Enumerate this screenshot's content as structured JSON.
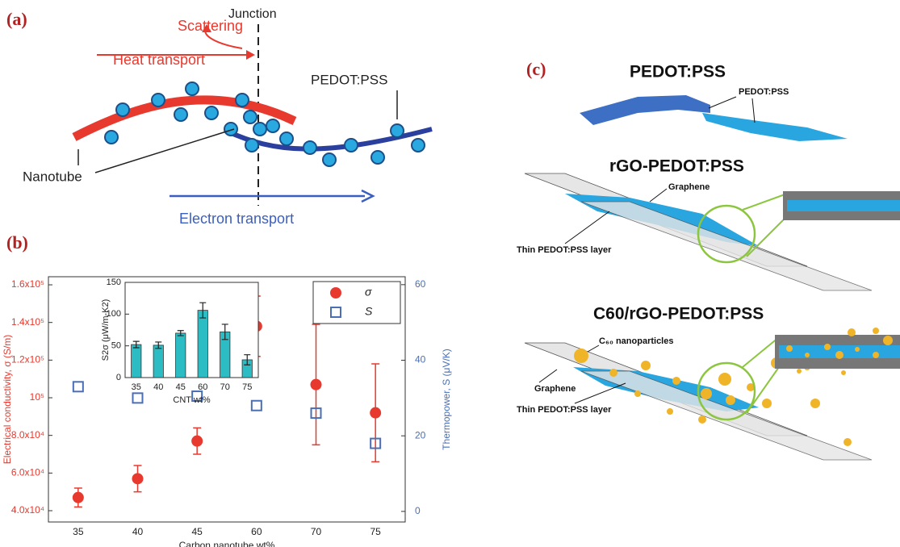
{
  "panel_a": {
    "label": "(a)",
    "scattering": "Scattering",
    "junction": "Junction",
    "heat_transport": "Heat transport",
    "pedot_pss": "PEDOT:PSS",
    "nanotube": "Nanotube",
    "electron_transport": "Electron transport"
  },
  "panel_b": {
    "label": "(b)"
  },
  "chart_data": [
    {
      "type": "scatter",
      "xlabel": "Carbon nanotube wt%",
      "ylabel": "Electrical conductivity, σ (S/m)",
      "y2label": "Thermopower, S (μV/K)",
      "categories": [
        "35",
        "40",
        "45",
        "60",
        "70",
        "75"
      ],
      "series": [
        {
          "name": "σ",
          "color": "#e8392e",
          "values": [
            47000,
            57000,
            77000,
            138000,
            107000,
            92000
          ],
          "errors": [
            5000,
            7000,
            7000,
            16000,
            32000,
            26000
          ]
        },
        {
          "name": "S",
          "color": "#4a6fb5",
          "axis": "y2",
          "values": [
            33,
            30,
            30.5,
            28,
            26,
            18
          ]
        }
      ],
      "ylim": [
        34000,
        164300
      ],
      "yticks": [
        {
          "value": 40000,
          "label": "4.0x10⁴"
        },
        {
          "value": 60000,
          "label": "6.0x10⁴"
        },
        {
          "value": 80000,
          "label": "8.0x10⁴"
        },
        {
          "value": 100000,
          "label": "10⁵"
        },
        {
          "value": 120000,
          "label": "1.2x10⁵"
        },
        {
          "value": 140000,
          "label": "1.4x10⁵"
        },
        {
          "value": 160000,
          "label": "1.6x10⁵"
        }
      ],
      "y2lim": [
        -2.8,
        62.1
      ],
      "y2ticks": [
        0,
        20,
        40,
        60
      ],
      "legend": "upper right"
    },
    {
      "type": "bar",
      "xlabel": "CNT wt%",
      "ylabel": "S2σ (μW/m-K2)",
      "categories": [
        "35",
        "40",
        "45",
        "60",
        "70",
        "75"
      ],
      "values": [
        52,
        51,
        70,
        106,
        72,
        28
      ],
      "errors": [
        5,
        5,
        4,
        12,
        12,
        8
      ],
      "color": "#2bbcc4",
      "ylim": [
        0,
        150
      ],
      "yticks": [
        0,
        50,
        100,
        150
      ]
    }
  ],
  "panel_c": {
    "label": "(c)",
    "title_1": "PEDOT:PSS",
    "pedot_pss": "PEDOT:PSS",
    "title_2": "rGO-PEDOT:PSS",
    "graphene_2": "Graphene",
    "thin_layer_2": "Thin PEDOT:PSS  layer",
    "title_3": "C60/rGO-PEDOT:PSS",
    "nanoparticles": "C₆₀ nanoparticles",
    "graphene_3": "Graphene",
    "thin_layer_3": "Thin PEDOT:PSS  layer"
  }
}
